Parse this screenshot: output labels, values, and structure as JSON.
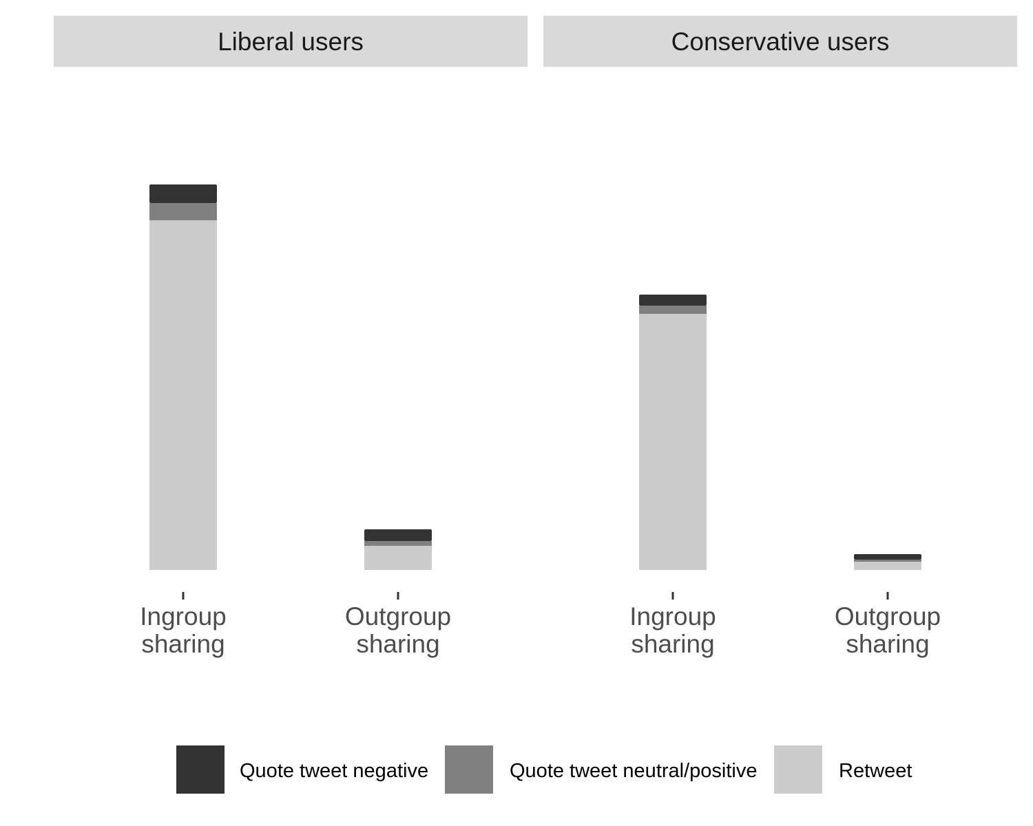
{
  "chart_data": {
    "type": "bar",
    "stacked": true,
    "facets": [
      "Liberal users",
      "Conservative users"
    ],
    "categories": [
      "Ingroup\nsharing",
      "Outgroup\nsharing"
    ],
    "series": [
      {
        "name": "Retweet",
        "color": "#cccccc",
        "values": [
          [
            508,
            35
          ],
          [
            372,
            12
          ]
        ]
      },
      {
        "name": "Quote tweet neutral/positive",
        "color": "#808080",
        "values": [
          [
            25,
            7
          ],
          [
            12,
            3
          ]
        ]
      },
      {
        "name": "Quote tweet negative",
        "color": "#333333",
        "values": [
          [
            27,
            17
          ],
          [
            16,
            8
          ]
        ]
      }
    ],
    "legend_order": [
      "Quote tweet negative",
      "Quote tweet neutral/positive",
      "Retweet"
    ],
    "ylim": [
      0,
      620
    ],
    "legend_position": "bottom",
    "grid": false
  }
}
